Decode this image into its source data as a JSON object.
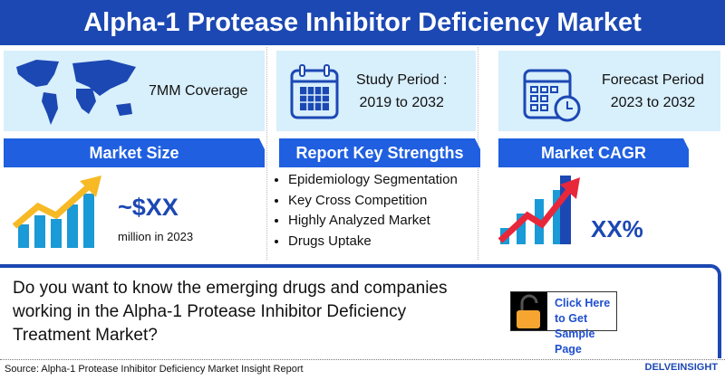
{
  "header": {
    "title": "Alpha-1 Protease Inhibitor Deficiency Market"
  },
  "cards": [
    {
      "text": "7MM Coverage",
      "icon": "world-map-icon"
    },
    {
      "line1": "Study Period :",
      "line2": "2019 to 2032",
      "icon": "calendar-icon"
    },
    {
      "line1": "Forecast Period",
      "line2": "2023 to 2032",
      "icon": "calendar-clock-icon"
    }
  ],
  "market_size": {
    "label": "Market Size",
    "value": "~$XX",
    "unit": "million in 2023"
  },
  "strengths": {
    "label": "Report Key Strengths",
    "items": [
      "Epidemiology Segmentation",
      "Key Cross Competition",
      "Highly Analyzed Market",
      "Drugs Uptake"
    ]
  },
  "cagr": {
    "label": "Market CAGR",
    "value": "XX%"
  },
  "cta": {
    "question": "Do you want to know the emerging drugs and companies working in the Alpha-1 Protease Inhibitor Deficiency Treatment Market?",
    "button": "Click Here to Get Sample Page"
  },
  "footer": {
    "source": "Source: Alpha-1 Protease Inhibitor Deficiency Market Insight Report",
    "logo": "DELVEINSIGHT"
  },
  "colors": {
    "header": "#1c48b3",
    "bar": "#1f5fe0",
    "panel": "#d8effc",
    "lock": "#f7a531"
  }
}
